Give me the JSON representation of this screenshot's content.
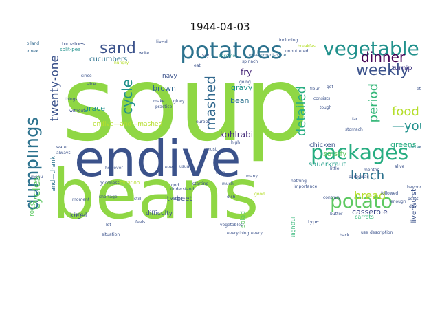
{
  "title": "1944-04-03",
  "words": [
    {
      "text": "soup",
      "color": "#8fd744"
    },
    {
      "text": "endive",
      "color": "#3b528b"
    },
    {
      "text": "beans",
      "color": "#8fd744"
    },
    {
      "text": "potatoes",
      "color": "#2c728e"
    },
    {
      "text": "packages",
      "color": "#27ad81"
    },
    {
      "text": "vegetable",
      "color": "#21918c"
    },
    {
      "text": "dumplings",
      "color": "#2c728e"
    },
    {
      "text": "potato",
      "color": "#5ec962"
    },
    {
      "text": "weekly",
      "color": "#3b528b"
    },
    {
      "text": "sand",
      "color": "#3b528b"
    },
    {
      "text": "cycle",
      "color": "#21918c"
    },
    {
      "text": "mashed",
      "color": "#31688e"
    },
    {
      "text": "lunch",
      "color": "#2c728e"
    },
    {
      "text": "dinner",
      "color": "#440154"
    },
    {
      "text": "period",
      "color": "#35b779"
    },
    {
      "text": "food",
      "color": "#b5de2b"
    },
    {
      "text": "—you",
      "color": "#21918c"
    },
    {
      "text": "detailed",
      "color": "#27ad81"
    },
    {
      "text": "twenty-one",
      "color": "#3b528b"
    },
    {
      "text": "cycles",
      "color": "#5ec962"
    },
    {
      "text": "bread",
      "color": "#b5de2b"
    },
    {
      "text": "kohlrabi",
      "color": "#472d7b"
    },
    {
      "text": "fry",
      "color": "#482878"
    },
    {
      "text": "gravy",
      "color": "#21918c"
    },
    {
      "text": "bean",
      "color": "#2c728e"
    },
    {
      "text": "brown",
      "color": "#31688e"
    },
    {
      "text": "grace",
      "color": "#21918c"
    },
    {
      "text": "navy",
      "color": "#3b528b"
    },
    {
      "text": "endive—and—mashed",
      "color": "#b5de2b"
    },
    {
      "text": "sauerkraut",
      "color": "#1f9e89"
    },
    {
      "text": "salsify",
      "color": "#5ec962"
    },
    {
      "text": "chicken",
      "color": "#3b528b"
    },
    {
      "text": "greens",
      "color": "#27ad81"
    },
    {
      "text": "turnip",
      "color": "#443983"
    },
    {
      "text": "casserole",
      "color": "#3e4989"
    },
    {
      "text": "liverwurst",
      "color": "#3b528b"
    },
    {
      "text": "cucumbers",
      "color": "#2c728e"
    },
    {
      "text": "it—beet",
      "color": "#3b528b"
    },
    {
      "text": "kugel",
      "color": "#3b528b"
    },
    {
      "text": "difficulty",
      "color": "#3b528b"
    },
    {
      "text": "salad",
      "color": "#5ec962"
    },
    {
      "text": "rocks",
      "color": "#5ec962"
    },
    {
      "text": "and—thank",
      "color": "#2c728e"
    },
    {
      "text": "delightful",
      "color": "#35b779"
    },
    {
      "text": "carrots",
      "color": "#35b779"
    },
    {
      "text": "type",
      "color": "#3b528b"
    },
    {
      "text": "imitation",
      "color": "#b5de2b"
    },
    {
      "text": "tomatoes",
      "color": "#3b528b"
    },
    {
      "text": "split-pea",
      "color": "#21918c"
    },
    {
      "text": "lived",
      "color": "#3b528b"
    },
    {
      "text": "breakfast",
      "color": "#b5de2b"
    },
    {
      "text": "including",
      "color": "#3b528b"
    },
    {
      "text": "unbuttered",
      "color": "#3b528b"
    },
    {
      "text": "government-issue",
      "color": "#31688e"
    },
    {
      "text": "become",
      "color": "#21918c"
    },
    {
      "text": "spinach",
      "color": "#3b528b"
    },
    {
      "text": "write",
      "color": "#3b528b"
    },
    {
      "text": "holland",
      "color": "#31688e"
    },
    {
      "text": "annex",
      "color": "#31688e"
    },
    {
      "text": "hungry",
      "color": "#b5de2b"
    },
    {
      "text": "eat",
      "color": "#3b528b"
    },
    {
      "text": "say",
      "color": "#3b528b"
    },
    {
      "text": "going",
      "color": "#3b528b"
    },
    {
      "text": "since",
      "color": "#3b528b"
    },
    {
      "text": "slice",
      "color": "#3b528b"
    },
    {
      "text": "things",
      "color": "#3b528b"
    },
    {
      "text": "without",
      "color": "#3b528b"
    },
    {
      "text": "practice",
      "color": "#3b528b"
    },
    {
      "text": "gluey",
      "color": "#3b528b"
    },
    {
      "text": "make",
      "color": "#3b528b"
    },
    {
      "text": "consists",
      "color": "#3b528b"
    },
    {
      "text": "tough",
      "color": "#3b528b"
    },
    {
      "text": "got",
      "color": "#3b528b"
    },
    {
      "text": "flour",
      "color": "#3b528b"
    },
    {
      "text": "etc.",
      "color": "#3b528b"
    },
    {
      "text": "far",
      "color": "#3b528b"
    },
    {
      "text": "stomach",
      "color": "#3b528b"
    },
    {
      "text": "rotten",
      "color": "#21918c"
    },
    {
      "text": "tell",
      "color": "#3b528b"
    },
    {
      "text": "europe",
      "color": "#3b528b"
    },
    {
      "text": "high",
      "color": "#3b528b"
    },
    {
      "text": "must",
      "color": "#3b528b"
    },
    {
      "text": "water",
      "color": "#3b528b"
    },
    {
      "text": "always",
      "color": "#3b528b"
    },
    {
      "text": "however",
      "color": "#3b528b"
    },
    {
      "text": "usual",
      "color": "#3b528b"
    },
    {
      "text": "time",
      "color": "#3b528b"
    },
    {
      "text": "importance",
      "color": "#3b528b"
    },
    {
      "text": "little",
      "color": "#3b528b"
    },
    {
      "text": "months",
      "color": "#3b528b"
    },
    {
      "text": "alive",
      "color": "#3b528b"
    },
    {
      "text": "menu",
      "color": "#3b528b"
    },
    {
      "text": "goodness",
      "color": "#3b528b"
    },
    {
      "text": "much",
      "color": "#3b528b"
    },
    {
      "text": "many",
      "color": "#3b528b"
    },
    {
      "text": "nothing",
      "color": "#3b528b"
    },
    {
      "text": "particular",
      "color": "#3b528b"
    },
    {
      "text": "beyond",
      "color": "#3b528b"
    },
    {
      "text": "moment",
      "color": "#3b528b"
    },
    {
      "text": "shortage",
      "color": "#3b528b"
    },
    {
      "text": "still",
      "color": "#3b528b"
    },
    {
      "text": "dish",
      "color": "#3b528b"
    },
    {
      "text": "good",
      "color": "#b5de2b"
    },
    {
      "text": "contrary",
      "color": "#3b528b"
    },
    {
      "text": "followed",
      "color": "#3b528b"
    },
    {
      "text": "enough",
      "color": "#3b528b"
    },
    {
      "text": "day",
      "color": "#3b528b"
    },
    {
      "text": "point",
      "color": "#3b528b"
    },
    {
      "text": "long",
      "color": "#3b528b"
    },
    {
      "text": "lot",
      "color": "#3b528b"
    },
    {
      "text": "feels",
      "color": "#3b528b"
    },
    {
      "text": "situation",
      "color": "#3b528b"
    },
    {
      "text": "vegetables",
      "color": "#3b528b"
    },
    {
      "text": "everything",
      "color": "#3b528b"
    },
    {
      "text": "every",
      "color": "#3b528b"
    },
    {
      "text": "back",
      "color": "#3b528b"
    },
    {
      "text": "use",
      "color": "#3b528b"
    },
    {
      "text": "description",
      "color": "#3b528b"
    },
    {
      "text": "understand",
      "color": "#3b528b"
    },
    {
      "text": "god",
      "color": "#3b528b"
    },
    {
      "text": "well",
      "color": "#3b528b"
    },
    {
      "text": "etc",
      "color": "#3b528b"
    },
    {
      "text": "even",
      "color": "#3b528b"
    },
    {
      "text": "starting",
      "color": "#3b528b"
    },
    {
      "text": "butter",
      "color": "#3b528b"
    }
  ]
}
